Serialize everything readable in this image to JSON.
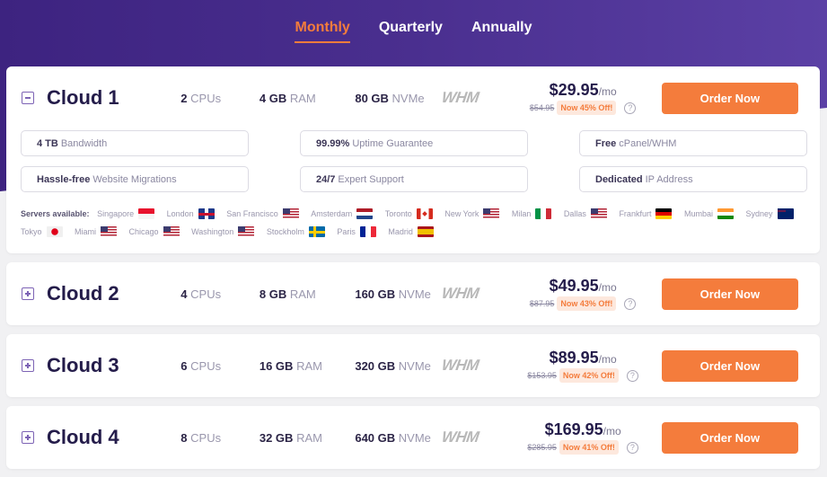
{
  "billing_tabs": [
    {
      "label": "Monthly",
      "active": true
    },
    {
      "label": "Quarterly",
      "active": false
    },
    {
      "label": "Annually",
      "active": false
    }
  ],
  "plans": [
    {
      "name": "Cloud 1",
      "expanded": true,
      "cpu_value": "2",
      "cpu_unit": "CPUs",
      "ram_value": "4 GB",
      "ram_unit": "RAM",
      "disk_value": "80 GB",
      "disk_unit": "NVMe",
      "panel_logo": "WHM",
      "price": "$29.95",
      "period": "/mo",
      "old_price": "$54.95",
      "discount": "Now 45% Off!",
      "order_label": "Order Now",
      "features": [
        {
          "bold": "4 TB",
          "text": "Bandwidth"
        },
        {
          "bold": "99.99%",
          "text": "Uptime Guarantee"
        },
        {
          "bold": "Free",
          "text": "cPanel/WHM"
        },
        {
          "bold": "Hassle-free",
          "text": "Website Migrations"
        },
        {
          "bold": "24/7",
          "text": "Expert Support"
        },
        {
          "bold": "Dedicated",
          "text": "IP Address"
        }
      ],
      "servers_label": "Servers available:",
      "servers": [
        {
          "city": "Singapore",
          "flag": "sg"
        },
        {
          "city": "London",
          "flag": "uk"
        },
        {
          "city": "San Francisco",
          "flag": "us"
        },
        {
          "city": "Amsterdam",
          "flag": "nl"
        },
        {
          "city": "Toronto",
          "flag": "ca"
        },
        {
          "city": "New York",
          "flag": "us"
        },
        {
          "city": "Milan",
          "flag": "it"
        },
        {
          "city": "Dallas",
          "flag": "us"
        },
        {
          "city": "Frankfurt",
          "flag": "de"
        },
        {
          "city": "Mumbai",
          "flag": "in"
        },
        {
          "city": "Sydney",
          "flag": "au"
        },
        {
          "city": "Tokyo",
          "flag": "jp"
        },
        {
          "city": "Miami",
          "flag": "us"
        },
        {
          "city": "Chicago",
          "flag": "us"
        },
        {
          "city": "Washington",
          "flag": "us"
        },
        {
          "city": "Stockholm",
          "flag": "se"
        },
        {
          "city": "Paris",
          "flag": "fr"
        },
        {
          "city": "Madrid",
          "flag": "es"
        }
      ]
    },
    {
      "name": "Cloud 2",
      "expanded": false,
      "cpu_value": "4",
      "cpu_unit": "CPUs",
      "ram_value": "8 GB",
      "ram_unit": "RAM",
      "disk_value": "160 GB",
      "disk_unit": "NVMe",
      "panel_logo": "WHM",
      "price": "$49.95",
      "period": "/mo",
      "old_price": "$87.95",
      "discount": "Now 43% Off!",
      "order_label": "Order Now"
    },
    {
      "name": "Cloud 3",
      "expanded": false,
      "cpu_value": "6",
      "cpu_unit": "CPUs",
      "ram_value": "16 GB",
      "ram_unit": "RAM",
      "disk_value": "320 GB",
      "disk_unit": "NVMe",
      "panel_logo": "WHM",
      "price": "$89.95",
      "period": "/mo",
      "old_price": "$153.95",
      "discount": "Now 42% Off!",
      "order_label": "Order Now"
    },
    {
      "name": "Cloud 4",
      "expanded": false,
      "cpu_value": "8",
      "cpu_unit": "CPUs",
      "ram_value": "32 GB",
      "ram_unit": "RAM",
      "disk_value": "640 GB",
      "disk_unit": "NVMe",
      "panel_logo": "WHM",
      "price": "$169.95",
      "period": "/mo",
      "old_price": "$285.95",
      "discount": "Now 41% Off!",
      "order_label": "Order Now"
    }
  ],
  "help_glyph": "?",
  "colors": {
    "accent": "#f47c3c",
    "hero_purple": "#4a2f8f",
    "title_navy": "#241c4a",
    "badge_bg": "#fde8dd"
  }
}
